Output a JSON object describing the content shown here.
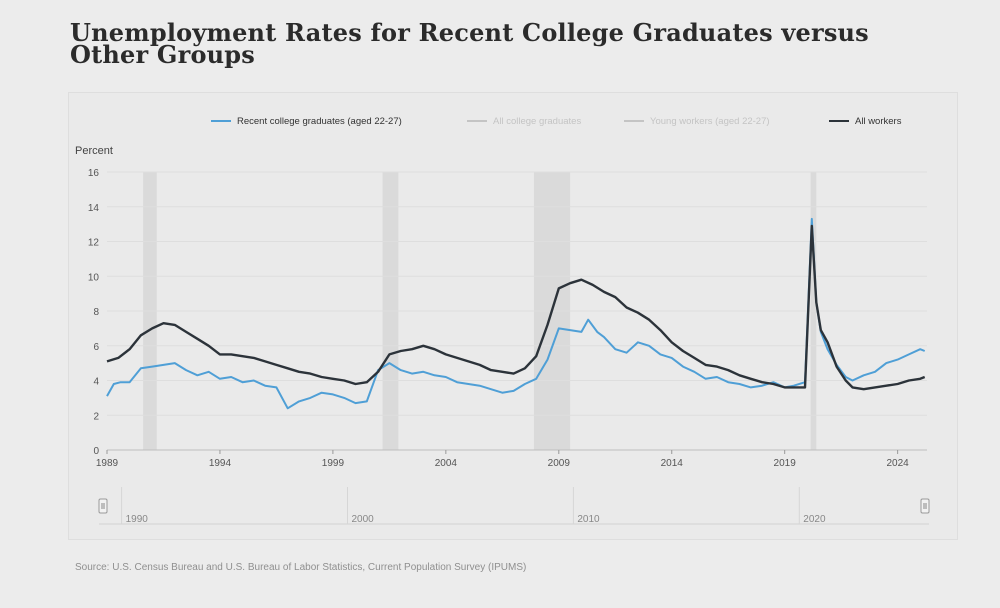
{
  "title": "Unemployment Rates for Recent College Graduates versus Other Groups",
  "source": "Source: U.S. Census Bureau and U.S. Bureau of Labor Statistics, Current Population Survey (IPUMS)",
  "colors": {
    "recent": "#4f9fd6",
    "all_workers": "#2c333a",
    "faded": "#c4c4c4",
    "recession": "#dadada",
    "grid": "#dedede"
  },
  "chart_data": {
    "type": "line",
    "title": "Unemployment Rates for Recent College Graduates versus Other Groups",
    "ylabel": "Percent",
    "xlabel": "",
    "xlim": [
      1989,
      2025.3
    ],
    "ylim": [
      0,
      16
    ],
    "yticks": [
      0,
      2,
      4,
      6,
      8,
      10,
      12,
      14,
      16
    ],
    "xticks": [
      1989,
      1994,
      1999,
      2004,
      2009,
      2014,
      2019,
      2024
    ],
    "grid": true,
    "legend_position": "top",
    "recession_bands": [
      [
        1990.6,
        1991.2
      ],
      [
        2001.2,
        2001.9
      ],
      [
        2007.9,
        2009.5
      ],
      [
        2020.15,
        2020.4
      ]
    ],
    "navigator": {
      "labels": [
        "1990",
        "2000",
        "2010",
        "2020"
      ],
      "label_years": [
        1990,
        2000,
        2010,
        2020
      ]
    },
    "series": [
      {
        "name": "Recent college graduates (aged 22-27)",
        "active": true,
        "x": [
          1989,
          1989.3,
          1989.6,
          1990,
          1990.5,
          1991,
          1991.5,
          1992,
          1992.5,
          1993,
          1993.5,
          1994,
          1994.5,
          1995,
          1995.5,
          1996,
          1996.5,
          1997,
          1997.5,
          1998,
          1998.5,
          1999,
          1999.5,
          2000,
          2000.5,
          2001,
          2001.5,
          2002,
          2002.5,
          2003,
          2003.5,
          2004,
          2004.5,
          2005,
          2005.5,
          2006,
          2006.5,
          2007,
          2007.5,
          2008,
          2008.5,
          2009,
          2009.5,
          2010,
          2010.3,
          2010.7,
          2011,
          2011.5,
          2012,
          2012.5,
          2013,
          2013.5,
          2014,
          2014.5,
          2015,
          2015.5,
          2016,
          2016.5,
          2017,
          2017.5,
          2018,
          2018.5,
          2019,
          2019.4,
          2019.9,
          2020.2,
          2020.4,
          2020.6,
          2020.9,
          2021.3,
          2021.7,
          2022,
          2022.5,
          2023,
          2023.5,
          2024,
          2024.5,
          2025,
          2025.2
        ],
        "values": [
          3.1,
          3.8,
          3.9,
          3.9,
          4.7,
          4.8,
          4.9,
          5.0,
          4.6,
          4.3,
          4.5,
          4.1,
          4.2,
          3.9,
          4.0,
          3.7,
          3.6,
          2.4,
          2.8,
          3.0,
          3.3,
          3.2,
          3.0,
          2.7,
          2.8,
          4.6,
          5.0,
          4.6,
          4.4,
          4.5,
          4.3,
          4.2,
          3.9,
          3.8,
          3.7,
          3.5,
          3.3,
          3.4,
          3.8,
          4.1,
          5.2,
          7.0,
          6.9,
          6.8,
          7.5,
          6.8,
          6.5,
          5.8,
          5.6,
          6.2,
          6.0,
          5.5,
          5.3,
          4.8,
          4.5,
          4.1,
          4.2,
          3.9,
          3.8,
          3.6,
          3.7,
          3.9,
          3.6,
          3.7,
          3.9,
          13.3,
          8.5,
          6.8,
          5.8,
          4.9,
          4.2,
          4.0,
          4.3,
          4.5,
          5.0,
          5.2,
          5.5,
          5.8,
          5.7
        ]
      },
      {
        "name": "All college graduates",
        "active": false
      },
      {
        "name": "Young workers (aged 22-27)",
        "active": false
      },
      {
        "name": "All workers",
        "active": true,
        "x": [
          1989,
          1989.5,
          1990,
          1990.5,
          1991,
          1991.5,
          1992,
          1992.5,
          1993,
          1993.5,
          1994,
          1994.5,
          1995,
          1995.5,
          1996,
          1996.5,
          1997,
          1997.5,
          1998,
          1998.5,
          1999,
          1999.5,
          2000,
          2000.5,
          2001,
          2001.5,
          2002,
          2002.5,
          2003,
          2003.5,
          2004,
          2004.5,
          2005,
          2005.5,
          2006,
          2006.5,
          2007,
          2007.5,
          2008,
          2008.5,
          2009,
          2009.5,
          2010,
          2010.5,
          2011,
          2011.5,
          2012,
          2012.5,
          2013,
          2013.5,
          2014,
          2014.5,
          2015,
          2015.5,
          2016,
          2016.5,
          2017,
          2017.5,
          2018,
          2018.5,
          2019,
          2019.5,
          2019.9,
          2020.2,
          2020.4,
          2020.6,
          2020.9,
          2021.3,
          2021.7,
          2022,
          2022.5,
          2023,
          2023.5,
          2024,
          2024.5,
          2025,
          2025.2
        ],
        "values": [
          5.1,
          5.3,
          5.8,
          6.6,
          7.0,
          7.3,
          7.2,
          6.8,
          6.4,
          6.0,
          5.5,
          5.5,
          5.4,
          5.3,
          5.1,
          4.9,
          4.7,
          4.5,
          4.4,
          4.2,
          4.1,
          4.0,
          3.8,
          3.9,
          4.5,
          5.5,
          5.7,
          5.8,
          6.0,
          5.8,
          5.5,
          5.3,
          5.1,
          4.9,
          4.6,
          4.5,
          4.4,
          4.7,
          5.4,
          7.2,
          9.3,
          9.6,
          9.8,
          9.5,
          9.1,
          8.8,
          8.2,
          7.9,
          7.5,
          6.9,
          6.2,
          5.7,
          5.3,
          4.9,
          4.8,
          4.6,
          4.3,
          4.1,
          3.9,
          3.8,
          3.6,
          3.6,
          3.6,
          12.9,
          8.5,
          6.9,
          6.2,
          4.8,
          4.0,
          3.6,
          3.5,
          3.6,
          3.7,
          3.8,
          4.0,
          4.1,
          4.2
        ]
      }
    ]
  }
}
